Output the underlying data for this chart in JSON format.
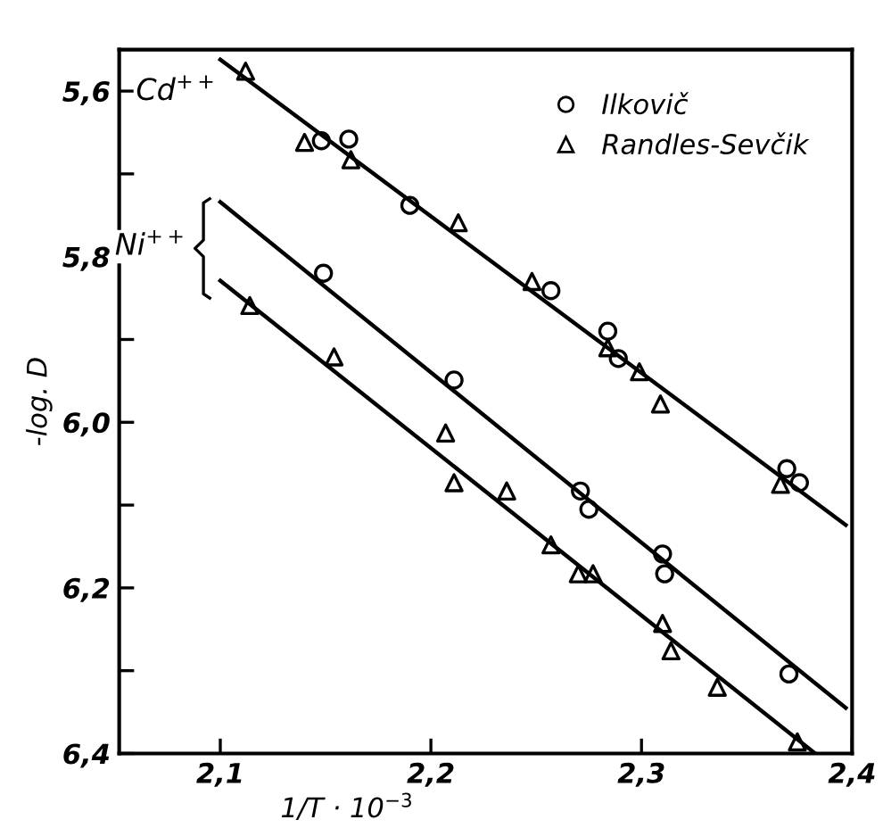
{
  "chart_data": {
    "type": "scatter",
    "xlabel": "1/T · 10$^{−3}$",
    "ylabel": "-log. D",
    "xlim": [
      2.052,
      2.4
    ],
    "ylim": [
      6.4,
      5.55
    ],
    "xticks": [
      {
        "value": 2.1,
        "label": "2,1"
      },
      {
        "value": 2.2,
        "label": "2,2"
      },
      {
        "value": 2.3,
        "label": "2,3"
      },
      {
        "value": 2.4,
        "label": "2,4"
      }
    ],
    "yticks": [
      {
        "value": 5.6,
        "label": "5,6"
      },
      {
        "value": 5.7,
        "label": null
      },
      {
        "value": 5.8,
        "label": "5,8"
      },
      {
        "value": 5.9,
        "label": null
      },
      {
        "value": 6.0,
        "label": "6,0"
      },
      {
        "value": 6.1,
        "label": null
      },
      {
        "value": 6.2,
        "label": "6,2"
      },
      {
        "value": 6.3,
        "label": null
      },
      {
        "value": 6.4,
        "label": "6,4"
      }
    ],
    "grid": false,
    "legend": "top right",
    "annotations": [
      "Cd$^{++}$",
      "Ni$^{++}$"
    ],
    "series": [
      {
        "name": "Ilkovič",
        "color": "#000000",
        "marker": "circle",
        "x": [
          2.148,
          2.161,
          2.19,
          2.257,
          2.284,
          2.289,
          2.369,
          2.375,
          2.149,
          2.211,
          2.271,
          2.275,
          2.31,
          2.311,
          2.37
        ],
        "values": [
          5.66,
          5.658,
          5.738,
          5.841,
          5.89,
          5.923,
          6.056,
          6.073,
          5.82,
          5.949,
          6.083,
          6.105,
          6.159,
          6.183,
          6.304
        ]
      },
      {
        "name": "Randles-Sevčik",
        "color": "#000000",
        "marker": "triangle",
        "x": [
          2.112,
          2.14,
          2.162,
          2.213,
          2.248,
          2.284,
          2.299,
          2.309,
          2.366,
          2.114,
          2.154,
          2.207,
          2.211,
          2.236,
          2.257,
          2.27,
          2.277,
          2.31,
          2.314,
          2.336,
          2.374
        ],
        "values": [
          5.576,
          5.662,
          5.683,
          5.759,
          5.83,
          5.91,
          5.939,
          5.978,
          6.075,
          5.859,
          5.921,
          6.013,
          6.073,
          6.083,
          6.148,
          6.183,
          6.183,
          6.243,
          6.276,
          6.32,
          6.386
        ]
      },
      {
        "type": "line",
        "color": "#000000",
        "x": [
          2.1,
          2.397
        ],
        "values": [
          5.562,
          6.124
        ]
      },
      {
        "type": "line",
        "color": "#000000",
        "x": [
          2.1,
          2.397
        ],
        "values": [
          5.734,
          6.345
        ]
      },
      {
        "type": "line",
        "color": "#000000",
        "x": [
          2.1,
          2.382
        ],
        "values": [
          5.829,
          6.399
        ]
      }
    ]
  }
}
